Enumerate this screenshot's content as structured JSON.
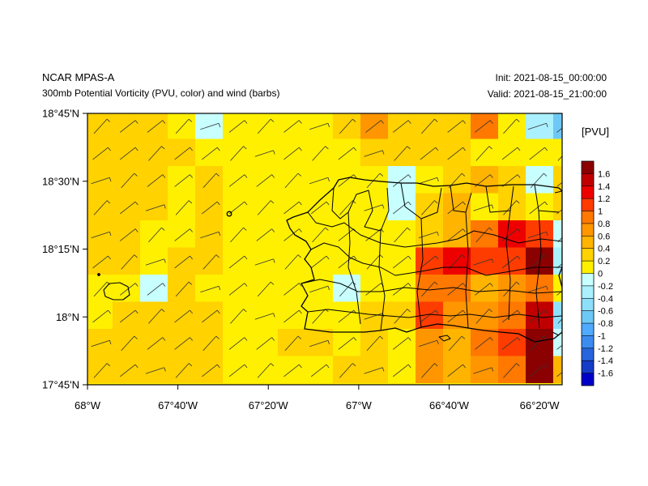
{
  "header": {
    "title": "NCAR MPAS-A",
    "subtitle": "300mb Potential Vorticity (PVU, color) and wind (barbs)",
    "init": "Init: 2021-08-15_00:00:00",
    "valid": "Valid: 2021-08-15_21:00:00"
  },
  "map": {
    "projection": "lat-lon",
    "lon_range": [
      -68.0,
      -66.25
    ],
    "lat_range": [
      17.75,
      18.75
    ],
    "x_ticks": [
      "68°W",
      "67°40'W",
      "67°20'W",
      "67°W",
      "66°40'W",
      "66°20'W"
    ],
    "x_tick_values": [
      -68.0,
      -67.6667,
      -67.3333,
      -67.0,
      -66.6667,
      -66.3333
    ],
    "y_ticks": [
      "18°45'N",
      "18°30'N",
      "18°15'N",
      "18°N",
      "17°45'N"
    ],
    "y_tick_values": [
      18.75,
      18.5,
      18.25,
      18.0,
      17.75
    ]
  },
  "colorbar": {
    "unit": "[PVU]",
    "labels": [
      "1.6",
      "1.4",
      "1.2",
      "1",
      "0.8",
      "0.6",
      "0.4",
      "0.2",
      "0",
      "-0.2",
      "-0.4",
      "-0.6",
      "-0.8",
      "-1",
      "-1.2",
      "-1.4",
      "-1.6"
    ],
    "colors": [
      "#8b0000",
      "#c00000",
      "#ee0000",
      "#ff3c00",
      "#ff7800",
      "#ff9600",
      "#ffb400",
      "#ffd200",
      "#fff000",
      "#c8ffff",
      "#aaf0ff",
      "#8ee0fa",
      "#6ec8f5",
      "#50aaff",
      "#3c8cf0",
      "#2864dc",
      "#143cc8",
      "#0000c8"
    ]
  },
  "pv_grid": {
    "rows": [
      [
        6,
        6,
        6,
        5,
        4,
        5,
        5,
        5,
        5,
        6,
        8,
        6,
        6,
        6,
        9,
        5,
        3,
        1,
        7
      ],
      [
        6,
        6,
        6,
        6,
        5,
        5,
        5,
        5,
        5,
        5,
        6,
        6,
        6,
        6,
        5,
        5,
        5,
        5,
        5
      ],
      [
        6,
        6,
        6,
        5,
        6,
        5,
        5,
        5,
        5,
        5,
        5,
        4,
        5,
        6,
        7,
        6,
        4,
        6,
        7
      ],
      [
        6,
        6,
        6,
        5,
        6,
        5,
        5,
        5,
        5,
        5,
        5,
        4,
        6,
        7,
        5,
        6,
        5,
        6,
        2
      ],
      [
        6,
        6,
        5,
        5,
        6,
        5,
        5,
        5,
        5,
        5,
        5,
        5,
        6,
        7,
        9,
        11,
        10,
        4,
        9
      ],
      [
        6,
        6,
        5,
        6,
        6,
        5,
        5,
        5,
        5,
        5,
        5,
        5,
        10,
        11,
        10,
        10,
        13,
        3,
        6
      ],
      [
        5,
        5,
        4,
        6,
        5,
        5,
        5,
        5,
        5,
        4,
        5,
        5,
        9,
        9,
        7,
        8,
        9,
        5,
        7
      ],
      [
        5,
        6,
        6,
        6,
        6,
        5,
        5,
        5,
        5,
        5,
        6,
        6,
        10,
        8,
        8,
        9,
        12,
        2,
        2
      ],
      [
        6,
        6,
        6,
        6,
        6,
        5,
        5,
        6,
        6,
        5,
        6,
        5,
        8,
        7,
        9,
        10,
        13,
        4,
        7
      ],
      [
        6,
        6,
        6,
        6,
        6,
        5,
        5,
        5,
        5,
        6,
        6,
        5,
        8,
        7,
        8,
        9,
        13,
        7,
        7
      ],
      [
        5,
        5,
        5,
        5,
        5,
        5,
        5,
        5,
        5,
        5,
        5,
        5,
        5,
        5,
        5,
        5,
        5,
        5,
        5
      ],
      [
        5,
        5,
        5,
        6,
        6,
        6,
        5,
        5,
        5,
        5,
        5,
        5,
        5,
        5,
        5,
        5,
        5,
        5,
        5
      ]
    ]
  }
}
